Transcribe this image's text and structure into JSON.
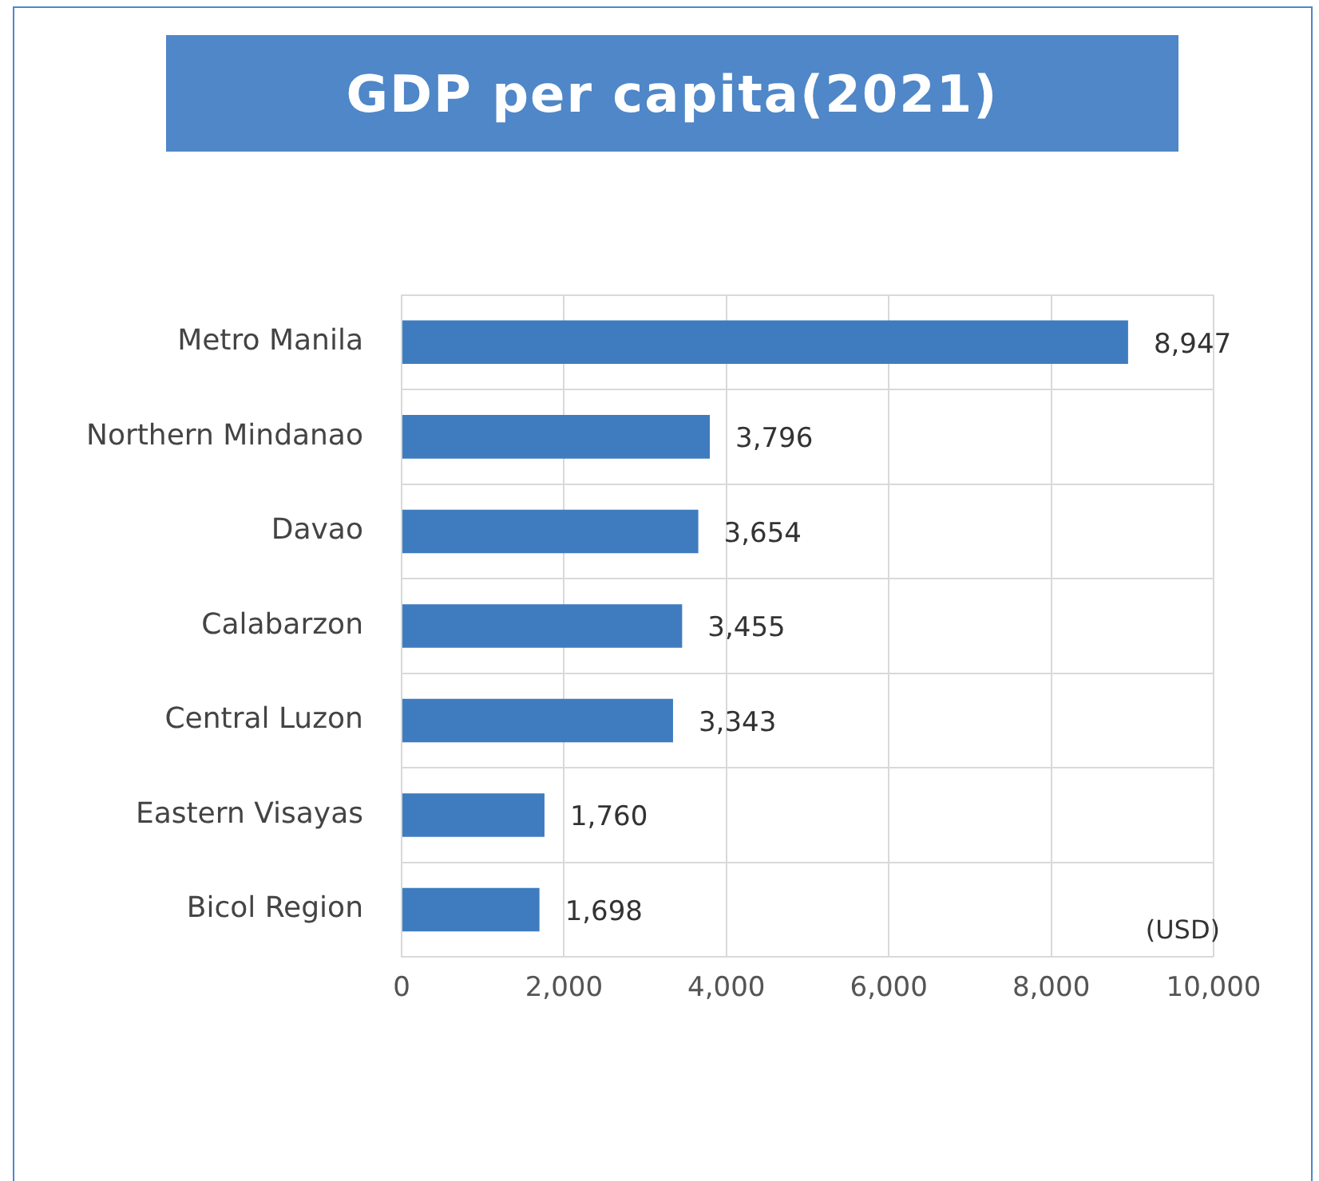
{
  "chart_data": {
    "type": "bar",
    "orientation": "horizontal",
    "title": "GDP per capita(2021)",
    "categories": [
      "Metro Manila",
      "Northern Mindanao",
      "Davao",
      "Calabarzon",
      "Central Luzon",
      "Eastern Visayas",
      "Bicol Region"
    ],
    "values": [
      8947,
      3796,
      3654,
      3455,
      3343,
      1760,
      1698
    ],
    "value_labels": [
      "8,947",
      "3,796",
      "3,654",
      "3,455",
      "3,343",
      "1,760",
      "1,698"
    ],
    "color": "#3f7cbf",
    "xlim": [
      0,
      10000
    ],
    "xticks": [
      {
        "value": 0,
        "label": "0"
      },
      {
        "value": 2000,
        "label": "2,000"
      },
      {
        "value": 4000,
        "label": "4,000"
      },
      {
        "value": 6000,
        "label": "6,000"
      },
      {
        "value": 8000,
        "label": "8,000"
      },
      {
        "value": 10000,
        "label": "10,000"
      }
    ],
    "grid": true,
    "legend": false,
    "annotations": [
      "(USD)"
    ]
  }
}
